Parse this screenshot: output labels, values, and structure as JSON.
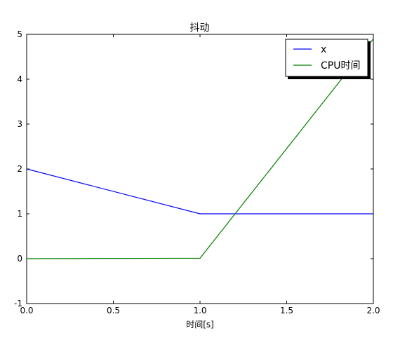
{
  "chart_data": {
    "type": "line",
    "title": "抖动",
    "xlabel": "时间[s]",
    "ylabel": "",
    "xlim": [
      0.0,
      2.0
    ],
    "ylim": [
      -1,
      5
    ],
    "xticks": [
      0.0,
      0.5,
      1.0,
      1.5,
      2.0
    ],
    "xtick_labels": [
      "0.0",
      "0.5",
      "1.0",
      "1.5",
      "2.0"
    ],
    "yticks": [
      -1,
      0,
      1,
      2,
      3,
      4,
      5
    ],
    "ytick_labels": [
      "-1",
      "0",
      "1",
      "2",
      "3",
      "4",
      "5"
    ],
    "grid": false,
    "legend_position": "top-right",
    "series": [
      {
        "name": "x",
        "color": "#0000ff",
        "x": [
          0.0,
          1.0,
          2.0
        ],
        "y": [
          2.0,
          1.0,
          1.0
        ]
      },
      {
        "name": "CPU时间",
        "color": "#008000",
        "x": [
          0.0,
          1.0,
          2.0
        ],
        "y": [
          0.0,
          0.01,
          4.9
        ]
      }
    ]
  }
}
